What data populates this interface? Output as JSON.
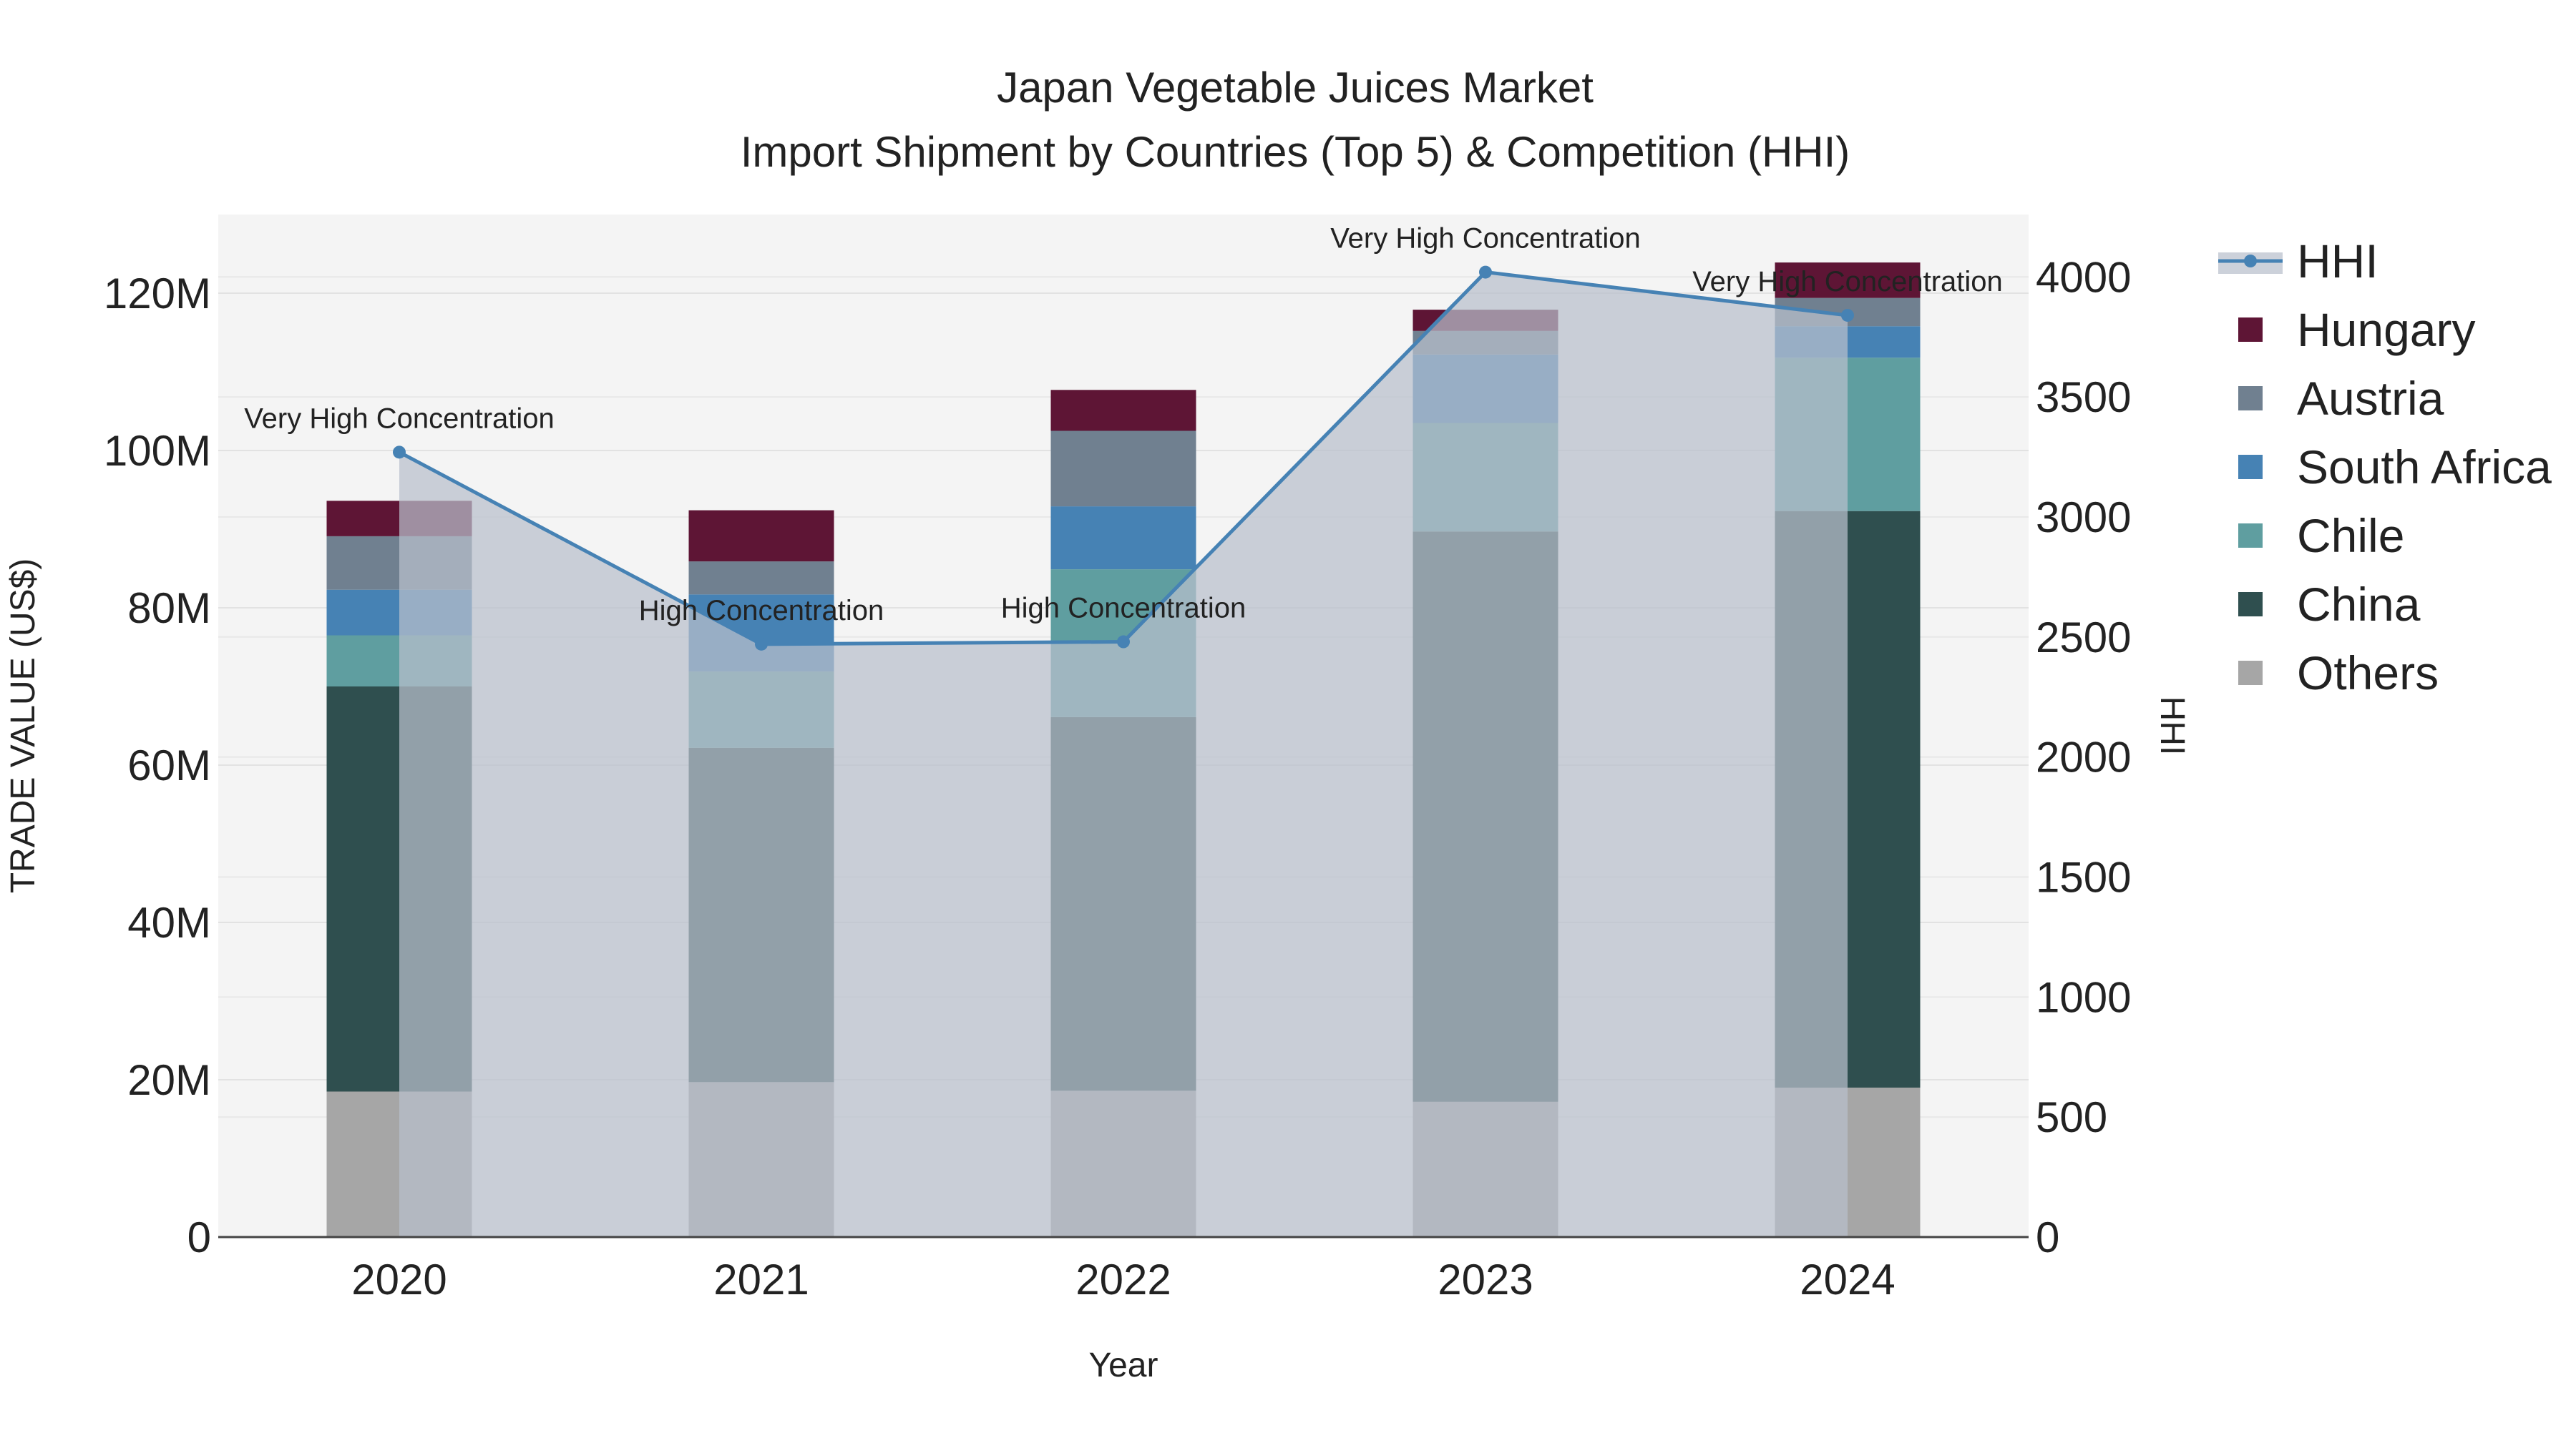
{
  "chart_data": {
    "type": "bar",
    "title": "Japan Vegetable Juices Market",
    "subtitle": "Import Shipment by Countries (Top 5) & Competition (HHI)",
    "xlabel": "Year",
    "ylabel": "TRADE VALUE (US$)",
    "y2label": "HHI",
    "categories": [
      "2020",
      "2021",
      "2022",
      "2023",
      "2024"
    ],
    "ylim": [
      0,
      130000000
    ],
    "y2lim": [
      0,
      4260
    ],
    "yticks": [
      {
        "value": 0,
        "label": "0"
      },
      {
        "value": 20000000,
        "label": "20M"
      },
      {
        "value": 40000000,
        "label": "40M"
      },
      {
        "value": 60000000,
        "label": "60M"
      },
      {
        "value": 80000000,
        "label": "80M"
      },
      {
        "value": 100000000,
        "label": "100M"
      },
      {
        "value": 120000000,
        "label": "120M"
      }
    ],
    "y2ticks": [
      {
        "value": 0,
        "label": "0"
      },
      {
        "value": 500,
        "label": "500"
      },
      {
        "value": 1000,
        "label": "1000"
      },
      {
        "value": 1500,
        "label": "1500"
      },
      {
        "value": 2000,
        "label": "2000"
      },
      {
        "value": 2500,
        "label": "2500"
      },
      {
        "value": 3000,
        "label": "3000"
      },
      {
        "value": 3500,
        "label": "3500"
      },
      {
        "value": 4000,
        "label": "4000"
      }
    ],
    "series": [
      {
        "name": "Others",
        "color": "#a6a6a6",
        "values": [
          18500000,
          19700000,
          18600000,
          17200000,
          19000000
        ]
      },
      {
        "name": "China",
        "color": "#2f4f4f",
        "values": [
          51500000,
          42500000,
          47500000,
          72500000,
          73300000
        ]
      },
      {
        "name": "Chile",
        "color": "#5f9ea0",
        "values": [
          6500000,
          9700000,
          18800000,
          13800000,
          19500000
        ]
      },
      {
        "name": "South Africa",
        "color": "#4682b4",
        "values": [
          5800000,
          9800000,
          8000000,
          8700000,
          4000000
        ]
      },
      {
        "name": "Austria",
        "color": "#708090",
        "values": [
          6800000,
          4200000,
          9600000,
          3000000,
          3600000
        ]
      },
      {
        "name": "Hungary",
        "color": "#5e1535",
        "values": [
          4500000,
          6500000,
          5200000,
          2700000,
          4500000
        ]
      }
    ],
    "hhi": {
      "name": "HHI",
      "color": "#4682b4",
      "values": [
        3270,
        2470,
        2480,
        4020,
        3840
      ],
      "annotations": [
        "Very High Concentration",
        "High Concentration",
        "High Concentration",
        "Very High Concentration",
        "Very High Concentration"
      ]
    },
    "legend": {
      "position": "right",
      "order": [
        "HHI",
        "Hungary",
        "Austria",
        "South Africa",
        "Chile",
        "China",
        "Others"
      ]
    }
  }
}
